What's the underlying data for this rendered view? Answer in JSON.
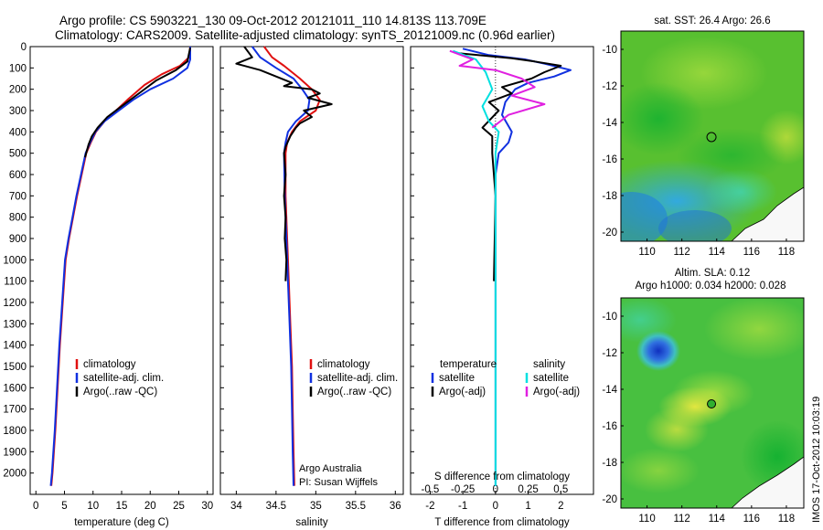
{
  "header": {
    "line1": "Argo profile: CS 5903221_130 09-Oct-2012 20121011_110 14.813S 113.709E",
    "line2": "Climatology: CARS2009. Satellite-adjusted climatology: synTS_20121009.nc (0.96d earlier)"
  },
  "footer_stamp": "IMOS 17-Oct-2012 10:03:19",
  "colors": {
    "climatology": "#e01010",
    "satellite": "#1030e0",
    "argo": "#000000",
    "sat_salinity": "#00e0e0",
    "argo_salinity": "#e020e0"
  },
  "chart_data": [
    {
      "type": "line",
      "id": "temperature",
      "xlabel": "temperature (deg C)",
      "xlim": [
        -1,
        31
      ],
      "xticks": [
        0,
        5,
        10,
        15,
        20,
        25,
        30
      ],
      "ylim": [
        2100,
        0
      ],
      "yticks": [
        0,
        100,
        200,
        300,
        400,
        500,
        600,
        700,
        800,
        900,
        1000,
        1100,
        1200,
        1300,
        1400,
        1500,
        1600,
        1700,
        1800,
        1900,
        2000
      ],
      "legend": [
        "climatology",
        "satellite-adj. clim.",
        "Argo(..raw -QC)"
      ],
      "series": [
        {
          "name": "climatology",
          "color": "#e01010",
          "points": [
            [
              27.0,
              0
            ],
            [
              26.8,
              50
            ],
            [
              25.2,
              90
            ],
            [
              22,
              130
            ],
            [
              19,
              180
            ],
            [
              16,
              250
            ],
            [
              14,
              300
            ],
            [
              12,
              350
            ],
            [
              10.5,
              400
            ],
            [
              9.6,
              450
            ],
            [
              8.8,
              500
            ],
            [
              8,
              600
            ],
            [
              7.2,
              700
            ],
            [
              6.5,
              800
            ],
            [
              5.8,
              900
            ],
            [
              5.2,
              1000
            ],
            [
              4.7,
              1200
            ],
            [
              4.2,
              1400
            ],
            [
              3.8,
              1600
            ],
            [
              3.4,
              1800
            ],
            [
              2.9,
              2000
            ],
            [
              2.7,
              2060
            ]
          ]
        },
        {
          "name": "satellite-adj. clim.",
          "color": "#1030e0",
          "points": [
            [
              27.0,
              0
            ],
            [
              27.0,
              60
            ],
            [
              26.5,
              100
            ],
            [
              24,
              150
            ],
            [
              20,
              200
            ],
            [
              17,
              250
            ],
            [
              14.5,
              300
            ],
            [
              12,
              350
            ],
            [
              10.4,
              400
            ],
            [
              9.5,
              450
            ],
            [
              8.7,
              500
            ],
            [
              7.9,
              600
            ],
            [
              7.1,
              700
            ],
            [
              6.4,
              800
            ],
            [
              5.7,
              900
            ],
            [
              5.1,
              1000
            ],
            [
              4.6,
              1200
            ],
            [
              4.1,
              1400
            ],
            [
              3.7,
              1600
            ],
            [
              3.3,
              1800
            ],
            [
              2.8,
              2000
            ],
            [
              2.6,
              2060
            ]
          ]
        },
        {
          "name": "Argo(..raw -QC)",
          "color": "#000000",
          "points": [
            [
              27.0,
              5
            ],
            [
              26.5,
              70
            ],
            [
              24.5,
              110
            ],
            [
              21,
              160
            ],
            [
              18.5,
              210
            ],
            [
              15,
              280
            ],
            [
              12.5,
              330
            ],
            [
              10.8,
              380
            ],
            [
              9.8,
              420
            ],
            [
              9.2,
              460
            ],
            [
              8.6,
              520
            ]
          ]
        }
      ]
    },
    {
      "type": "line",
      "id": "salinity",
      "xlabel": "salinity",
      "xlim": [
        33.8,
        36.1
      ],
      "xticks": [
        34,
        34.5,
        35,
        35.5,
        36
      ],
      "ylim": [
        2100,
        0
      ],
      "legend": [
        "climatology",
        "satellite-adj. clim.",
        "Argo(..raw -QC)"
      ],
      "annotation": [
        "Argo Australia",
        "PI: Susan Wijffels"
      ],
      "series": [
        {
          "name": "climatology",
          "color": "#e01010",
          "points": [
            [
              34.35,
              0
            ],
            [
              34.45,
              50
            ],
            [
              34.6,
              90
            ],
            [
              34.8,
              150
            ],
            [
              34.95,
              200
            ],
            [
              35.05,
              250
            ],
            [
              35.0,
              300
            ],
            [
              34.8,
              350
            ],
            [
              34.7,
              400
            ],
            [
              34.64,
              450
            ],
            [
              34.62,
              500
            ],
            [
              34.62,
              700
            ],
            [
              34.64,
              900
            ],
            [
              34.66,
              1100
            ],
            [
              34.68,
              1300
            ],
            [
              34.7,
              1500
            ],
            [
              34.71,
              1700
            ],
            [
              34.72,
              1900
            ],
            [
              34.73,
              2060
            ]
          ]
        },
        {
          "name": "satellite-adj. clim.",
          "color": "#1030e0",
          "points": [
            [
              34.2,
              0
            ],
            [
              34.3,
              50
            ],
            [
              34.5,
              100
            ],
            [
              34.72,
              150
            ],
            [
              34.83,
              200
            ],
            [
              34.92,
              250
            ],
            [
              34.9,
              300
            ],
            [
              34.75,
              350
            ],
            [
              34.65,
              400
            ],
            [
              34.62,
              450
            ],
            [
              34.6,
              500
            ],
            [
              34.61,
              700
            ],
            [
              34.63,
              900
            ],
            [
              34.65,
              1100
            ],
            [
              34.67,
              1300
            ],
            [
              34.69,
              1500
            ],
            [
              34.7,
              1700
            ],
            [
              34.71,
              1900
            ],
            [
              34.72,
              2060
            ]
          ]
        },
        {
          "name": "Argo(..raw -QC)",
          "color": "#000000",
          "points": [
            [
              34.1,
              0
            ],
            [
              34.2,
              50
            ],
            [
              34.0,
              80
            ],
            [
              34.3,
              110
            ],
            [
              34.5,
              140
            ],
            [
              34.7,
              170
            ],
            [
              34.6,
              185
            ],
            [
              34.95,
              200
            ],
            [
              35.05,
              220
            ],
            [
              34.9,
              240
            ],
            [
              35.2,
              270
            ],
            [
              34.85,
              300
            ],
            [
              34.95,
              330
            ],
            [
              34.8,
              360
            ],
            [
              34.75,
              380
            ],
            [
              34.68,
              420
            ],
            [
              34.62,
              470
            ],
            [
              34.6,
              500
            ],
            [
              34.62,
              600
            ],
            [
              34.6,
              700
            ],
            [
              34.62,
              800
            ],
            [
              34.61,
              900
            ],
            [
              34.63,
              1000
            ],
            [
              34.62,
              1100
            ]
          ]
        }
      ]
    },
    {
      "type": "line",
      "id": "difference",
      "xlabel": "T difference from climatology",
      "xlabel_top": "S difference from climatology",
      "xlim": [
        -2.6,
        3.0
      ],
      "xticks": [
        -2,
        -1,
        0,
        1,
        2
      ],
      "top_ticks": [
        -0.5,
        -0.25,
        0,
        0.25,
        0.5
      ],
      "ylim": [
        2100,
        0
      ],
      "legend_temp_title": "temperature",
      "legend_sal_title": "salinity",
      "legend_temp": [
        "satellite",
        "Argo(-adj)"
      ],
      "legend_sal": [
        "satellite",
        "Argo(-adj)"
      ],
      "series": [
        {
          "name": "T satellite",
          "color": "#1030e0",
          "points": [
            [
              -1.0,
              10
            ],
            [
              -0.2,
              40
            ],
            [
              0.9,
              60
            ],
            [
              1.5,
              80
            ],
            [
              2.3,
              110
            ],
            [
              1.8,
              140
            ],
            [
              1.0,
              170
            ],
            [
              0.6,
              200
            ],
            [
              0.3,
              260
            ],
            [
              0.2,
              320
            ],
            [
              0.5,
              400
            ],
            [
              0.4,
              450
            ],
            [
              0.1,
              500
            ],
            [
              0.0,
              600
            ],
            [
              0.0,
              1000
            ],
            [
              0.0,
              2060
            ]
          ]
        },
        {
          "name": "T Argo(-adj)",
          "color": "#000000",
          "points": [
            [
              -1.2,
              30
            ],
            [
              0.5,
              55
            ],
            [
              1.2,
              70
            ],
            [
              2.0,
              90
            ],
            [
              1.5,
              120
            ],
            [
              1.1,
              150
            ],
            [
              0.2,
              190
            ],
            [
              0.5,
              220
            ],
            [
              -0.2,
              260
            ],
            [
              0.1,
              300
            ],
            [
              -0.4,
              380
            ],
            [
              -0.1,
              420
            ],
            [
              -0.1,
              500
            ],
            [
              0.0,
              700
            ],
            [
              -0.05,
              1100
            ]
          ]
        },
        {
          "name": "S satellite",
          "color": "#00e0e0",
          "points": [
            [
              -1.3,
              20
            ],
            [
              -0.6,
              60
            ],
            [
              -0.3,
              120
            ],
            [
              -0.1,
              200
            ],
            [
              -0.4,
              280
            ],
            [
              -0.2,
              350
            ],
            [
              0.1,
              400
            ],
            [
              0.0,
              500
            ],
            [
              0.0,
              1000
            ],
            [
              0.0,
              2060
            ]
          ]
        },
        {
          "name": "S Argo(-adj)",
          "color": "#e020e0",
          "points": [
            [
              -1.4,
              20
            ],
            [
              -0.7,
              60
            ],
            [
              -1.1,
              90
            ],
            [
              0.0,
              110
            ],
            [
              0.8,
              150
            ],
            [
              1.2,
              190
            ],
            [
              0.5,
              230
            ],
            [
              1.5,
              270
            ],
            [
              0.4,
              320
            ],
            [
              -0.1,
              380
            ]
          ]
        }
      ]
    },
    {
      "type": "heatmap",
      "id": "sst-map",
      "title": "sat. SST: 26.4  Argo: 26.6",
      "xlim": [
        108.5,
        119
      ],
      "xticks": [
        110,
        112,
        114,
        116,
        118
      ],
      "ylim": [
        -20.5,
        -9
      ],
      "yticks": [
        -10,
        -12,
        -14,
        -16,
        -18,
        -20
      ],
      "argo_position": [
        113.7,
        -14.8
      ]
    },
    {
      "type": "heatmap",
      "id": "sla-map",
      "title_line1": "Altim. SLA: 0.12",
      "title_line2": "Argo h1000: 0.034  h2000: 0.028",
      "xlim": [
        108.5,
        119
      ],
      "xticks": [
        110,
        112,
        114,
        116,
        118
      ],
      "ylim": [
        -20.5,
        -9
      ],
      "yticks": [
        -10,
        -12,
        -14,
        -16,
        -18,
        -20
      ],
      "argo_position": [
        113.7,
        -14.8
      ]
    }
  ]
}
